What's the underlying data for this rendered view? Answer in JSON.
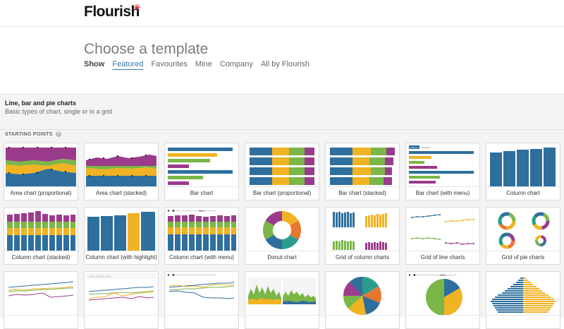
{
  "app": {
    "logo": "Flourish"
  },
  "hero": {
    "title": "Choose a template",
    "tabs": [
      "Show",
      "Featured",
      "Favourites",
      "Mine",
      "Company",
      "All by Flourish"
    ]
  },
  "section": {
    "title": "Line, bar and pie charts",
    "subtitle": "Basic types of chart, single or in a grid",
    "starting_points": "STARTING POINTS",
    "help": "?"
  },
  "colors": {
    "blue": "#2e6f9e",
    "yellow": "#f0b323",
    "green": "#7ab648",
    "purple": "#9b3b8c",
    "teal": "#2a9d8f",
    "orange": "#e8772e",
    "accent": "#2e7ba9"
  },
  "templates": [
    {
      "label": "Area chart (proportional)",
      "icon": "area-proportional-icon"
    },
    {
      "label": "Area chart (stacked)",
      "icon": "area-stacked-icon"
    },
    {
      "label": "Bar chart",
      "icon": "bar-chart-icon"
    },
    {
      "label": "Bar chart (proportional)",
      "icon": "bar-proportional-icon"
    },
    {
      "label": "Bar chart (stacked)",
      "icon": "bar-stacked-icon"
    },
    {
      "label": "Bar chart (with menu)",
      "icon": "bar-menu-icon"
    },
    {
      "label": "Column chart",
      "icon": "column-chart-icon"
    },
    {
      "label": "Column chart (stacked)",
      "icon": "column-stacked-icon"
    },
    {
      "label": "Column chart (with highlight)",
      "icon": "column-highlight-icon"
    },
    {
      "label": "Column chart (with menu)",
      "icon": "column-menu-icon"
    },
    {
      "label": "Donut chart",
      "icon": "donut-chart-icon"
    },
    {
      "label": "Grid of column charts",
      "icon": "grid-column-icon"
    },
    {
      "label": "Grid of line charts",
      "icon": "grid-line-icon"
    },
    {
      "label": "Grid of pie charts",
      "icon": "grid-pie-icon"
    },
    {
      "label": "",
      "icon": "line-chart-icon"
    },
    {
      "label": "",
      "icon": "line-menu-icon"
    },
    {
      "label": "",
      "icon": "line-highlight-icon"
    },
    {
      "label": "",
      "icon": "area-grid-icon"
    },
    {
      "label": "",
      "icon": "pie-chart-icon"
    },
    {
      "label": "",
      "icon": "pie-menu-icon"
    },
    {
      "label": "",
      "icon": "population-pyramid-icon"
    }
  ],
  "thumb_text": {
    "menu_a": "Group A",
    "menu_b": "Group B",
    "year": "2019",
    "search_placeholder": "Enter series to show"
  }
}
